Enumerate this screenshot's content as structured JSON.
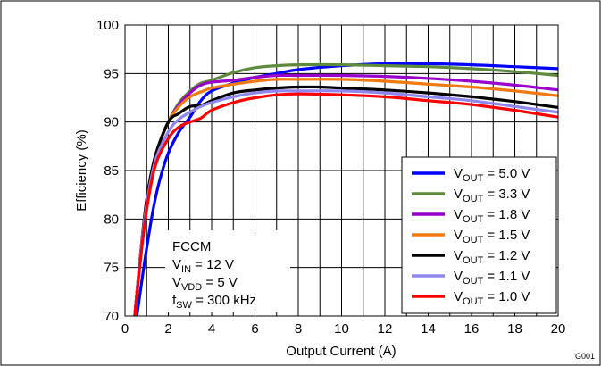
{
  "chart_data": {
    "type": "line",
    "xlabel": "Output Current (A)",
    "ylabel": "Efficiency (%)",
    "xlim": [
      0,
      20
    ],
    "ylim": [
      70,
      100
    ],
    "xticks": [
      "0",
      "2",
      "4",
      "6",
      "8",
      "10",
      "12",
      "14",
      "16",
      "18",
      "20"
    ],
    "yticks": [
      "70",
      "75",
      "80",
      "85",
      "90",
      "95",
      "100"
    ],
    "grid": true,
    "legend_position": "bottom-right",
    "figure_id": "G001",
    "annotation": [
      {
        "main": "FCCM",
        "sub": "",
        "rest": ""
      },
      {
        "main": "V",
        "sub": "IN",
        "rest": " = 12 V"
      },
      {
        "main": "V",
        "sub": "VDD",
        "rest": " = 5 V"
      },
      {
        "main": "f",
        "sub": "SW",
        "rest": " = 300 kHz"
      }
    ],
    "series": [
      {
        "name": "VOUT = 5.0 V",
        "main": "V",
        "sub": "OUT",
        "rest": " = 5.0 V",
        "color": "#0000ff",
        "points": [
          [
            0.55,
            70
          ],
          [
            0.8,
            74
          ],
          [
            1.0,
            77
          ],
          [
            1.3,
            81
          ],
          [
            1.6,
            84
          ],
          [
            2.0,
            86.8
          ],
          [
            2.5,
            89
          ],
          [
            3.0,
            90.5
          ],
          [
            3.5,
            92.2
          ],
          [
            4,
            93.2
          ],
          [
            5,
            94
          ],
          [
            6,
            94.6
          ],
          [
            7,
            95
          ],
          [
            8,
            95.4
          ],
          [
            10,
            95.8
          ],
          [
            12,
            96
          ],
          [
            14,
            96
          ],
          [
            16,
            95.9
          ],
          [
            18,
            95.7
          ],
          [
            20,
            95.5
          ]
        ]
      },
      {
        "name": "VOUT = 3.3 V",
        "main": "V",
        "sub": "OUT",
        "rest": " = 3.3 V",
        "color": "#5e8a3c",
        "points": [
          [
            0.45,
            70
          ],
          [
            0.7,
            76
          ],
          [
            1.0,
            82
          ],
          [
            1.4,
            86.5
          ],
          [
            2.0,
            90
          ],
          [
            2.5,
            92
          ],
          [
            3.0,
            93.2
          ],
          [
            3.5,
            94
          ],
          [
            4,
            94.3
          ],
          [
            5,
            95.1
          ],
          [
            6,
            95.6
          ],
          [
            7,
            95.8
          ],
          [
            8,
            95.9
          ],
          [
            10,
            95.9
          ],
          [
            12,
            95.8
          ],
          [
            14,
            95.7
          ],
          [
            16,
            95.5
          ],
          [
            18,
            95.2
          ],
          [
            20,
            94.8
          ]
        ]
      },
      {
        "name": "VOUT = 1.8 V",
        "main": "V",
        "sub": "OUT",
        "rest": " = 1.8 V",
        "color": "#9900cc",
        "points": [
          [
            0.45,
            70
          ],
          [
            0.7,
            76
          ],
          [
            1.0,
            82
          ],
          [
            1.4,
            86.5
          ],
          [
            2.0,
            90
          ],
          [
            2.5,
            91.8
          ],
          [
            3.0,
            93
          ],
          [
            3.5,
            93.8
          ],
          [
            4,
            94.1
          ],
          [
            5,
            94.3
          ],
          [
            6,
            94.6
          ],
          [
            7,
            94.8
          ],
          [
            8,
            94.8
          ],
          [
            10,
            94.8
          ],
          [
            12,
            94.7
          ],
          [
            14,
            94.5
          ],
          [
            16,
            94.2
          ],
          [
            18,
            93.8
          ],
          [
            20,
            93.3
          ]
        ]
      },
      {
        "name": "VOUT = 1.5 V",
        "main": "V",
        "sub": "OUT",
        "rest": " = 1.5 V",
        "color": "#f07a10",
        "points": [
          [
            0.45,
            70
          ],
          [
            0.7,
            76
          ],
          [
            1.0,
            82
          ],
          [
            1.4,
            86.5
          ],
          [
            2.0,
            90
          ],
          [
            2.5,
            91.6
          ],
          [
            3.0,
            92.6
          ],
          [
            3.5,
            93.1
          ],
          [
            4,
            93.5
          ],
          [
            5,
            93.9
          ],
          [
            6,
            94.2
          ],
          [
            7,
            94.4
          ],
          [
            8,
            94.4
          ],
          [
            10,
            94.4
          ],
          [
            12,
            94.2
          ],
          [
            14,
            93.9
          ],
          [
            16,
            93.6
          ],
          [
            18,
            93.2
          ],
          [
            20,
            92.7
          ]
        ]
      },
      {
        "name": "VOUT = 1.2 V",
        "main": "V",
        "sub": "OUT",
        "rest": " = 1.2 V",
        "color": "#000000",
        "points": [
          [
            0.45,
            70
          ],
          [
            0.7,
            76
          ],
          [
            1.0,
            82
          ],
          [
            1.4,
            86.5
          ],
          [
            2.0,
            90
          ],
          [
            2.5,
            90.9
          ],
          [
            3.0,
            91.6
          ],
          [
            3.5,
            91.7
          ],
          [
            4,
            92.2
          ],
          [
            5,
            93
          ],
          [
            6,
            93.3
          ],
          [
            7,
            93.5
          ],
          [
            8,
            93.6
          ],
          [
            9,
            93.6
          ],
          [
            10,
            93.5
          ],
          [
            12,
            93.3
          ],
          [
            14,
            93
          ],
          [
            16,
            92.6
          ],
          [
            18,
            92.1
          ],
          [
            20,
            91.5
          ]
        ]
      },
      {
        "name": "VOUT = 1.1 V",
        "main": "V",
        "sub": "OUT",
        "rest": " = 1.1 V",
        "color": "#8f86f0",
        "points": [
          [
            0.45,
            70
          ],
          [
            0.7,
            76
          ],
          [
            1.0,
            81.5
          ],
          [
            1.4,
            86
          ],
          [
            2.0,
            89
          ],
          [
            2.5,
            90.3
          ],
          [
            3.0,
            91
          ],
          [
            3.5,
            91.6
          ],
          [
            4,
            92
          ],
          [
            5,
            92.6
          ],
          [
            6,
            93
          ],
          [
            7,
            93.2
          ],
          [
            8,
            93.2
          ],
          [
            10,
            93.2
          ],
          [
            12,
            93
          ],
          [
            14,
            92.6
          ],
          [
            16,
            92.2
          ],
          [
            18,
            91.6
          ],
          [
            20,
            91
          ]
        ]
      },
      {
        "name": "VOUT = 1.0 V",
        "main": "V",
        "sub": "OUT",
        "rest": " = 1.0 V",
        "color": "#ff0000",
        "points": [
          [
            0.45,
            70
          ],
          [
            0.7,
            75.5
          ],
          [
            1.0,
            81
          ],
          [
            1.4,
            85.5
          ],
          [
            2.0,
            88.3
          ],
          [
            2.5,
            89.5
          ],
          [
            3.0,
            90
          ],
          [
            3.5,
            90.4
          ],
          [
            4,
            91.2
          ],
          [
            5,
            92
          ],
          [
            6,
            92.5
          ],
          [
            7,
            92.8
          ],
          [
            8,
            92.9
          ],
          [
            10,
            92.8
          ],
          [
            12,
            92.6
          ],
          [
            14,
            92.2
          ],
          [
            16,
            91.8
          ],
          [
            18,
            91.2
          ],
          [
            20,
            90.5
          ]
        ]
      }
    ]
  }
}
